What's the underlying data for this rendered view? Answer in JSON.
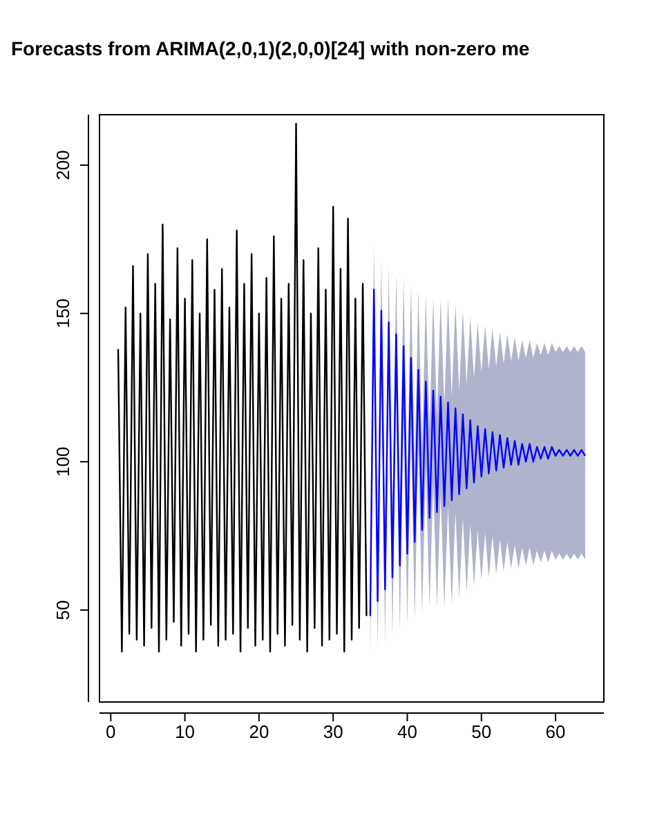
{
  "chart_data": {
    "type": "line",
    "title": "Forecasts from ARIMA(2,0,1)(2,0,0)[24] with non-zero me",
    "xlim": [
      -1.52,
      66.52
    ],
    "xticks": [
      0,
      10,
      20,
      30,
      40,
      50,
      60
    ],
    "ylim": [
      19,
      217
    ],
    "yticks": [
      50,
      100,
      150,
      200
    ],
    "grid": false,
    "marker": "none",
    "line_style": "solid",
    "series": [
      {
        "color": "#000000",
        "x": [
          1,
          1.5,
          2,
          2.5,
          3,
          3.5,
          4,
          4.5,
          5,
          5.5,
          6,
          6.5,
          7,
          7.5,
          8,
          8.5,
          9,
          9.5,
          10,
          10.5,
          11,
          11.5,
          12,
          12.5,
          13,
          13.5,
          14,
          14.5,
          15,
          15.5,
          16,
          16.5,
          17,
          17.5,
          18,
          18.5,
          19,
          19.5,
          20,
          20.5,
          21,
          21.5,
          22,
          22.5,
          23,
          23.5,
          24,
          24.5,
          25,
          25.5,
          26,
          26.5,
          27,
          27.5,
          28,
          28.5,
          29,
          29.5,
          30,
          30.5,
          31,
          31.5,
          32,
          32.5,
          33,
          33.5,
          34,
          34.5
        ],
        "values": [
          138,
          36,
          152,
          42,
          166,
          40,
          150,
          38,
          170,
          44,
          160,
          36,
          180,
          40,
          148,
          46,
          172,
          38,
          155,
          42,
          168,
          36,
          150,
          40,
          175,
          45,
          158,
          38,
          165,
          40,
          152,
          42,
          178,
          36,
          160,
          44,
          170,
          38,
          150,
          40,
          162,
          36,
          176,
          42,
          155,
          38,
          160,
          45,
          214,
          40,
          168,
          36,
          150,
          44,
          172,
          38,
          158,
          40,
          186,
          42,
          165,
          36,
          182,
          40,
          155,
          44,
          160,
          48
        ]
      },
      {
        "color": "#0000ff",
        "x": [
          35,
          35.5,
          36,
          36.5,
          37,
          37.5,
          38,
          38.5,
          39,
          39.5,
          40,
          40.5,
          41,
          41.5,
          42,
          42.5,
          43,
          43.5,
          44,
          44.5,
          45,
          45.5,
          46,
          46.5,
          47,
          47.5,
          48,
          48.5,
          49,
          49.5,
          50,
          50.5,
          51,
          51.5,
          52,
          52.5,
          53,
          53.5,
          54,
          54.5,
          55,
          55.5,
          56,
          56.5,
          57,
          57.5,
          58,
          58.5,
          59,
          59.5,
          60,
          60.5,
          61,
          61.5,
          62,
          62.5,
          63,
          63.5,
          64
        ],
        "values": [
          48,
          158,
          53,
          151,
          57,
          147,
          61,
          143,
          65,
          139,
          69,
          135,
          73,
          131,
          77,
          127,
          81,
          124,
          83,
          122,
          85,
          120,
          87,
          118,
          89,
          116,
          91,
          114,
          93,
          112,
          95,
          111,
          96,
          110,
          97,
          109,
          98,
          108,
          99,
          107,
          99,
          106,
          100,
          106,
          100,
          105,
          101,
          105,
          101,
          105,
          102,
          104,
          102,
          104,
          102,
          104,
          102,
          104,
          102
        ],
        "upper": [
          62,
          173,
          69,
          168,
          75,
          166,
          81,
          164,
          87,
          162,
          93,
          160,
          99,
          158,
          105,
          156,
          111,
          155,
          115,
          155,
          119,
          155,
          122,
          153,
          124,
          151,
          126,
          149,
          128,
          147,
          130,
          146,
          131,
          145,
          132,
          144,
          133,
          143,
          134,
          142,
          134,
          141,
          135,
          141,
          135,
          140,
          136,
          140,
          136,
          140,
          137,
          139,
          137,
          139,
          137,
          139,
          137,
          139,
          137
        ],
        "lower": [
          34,
          143,
          37,
          134,
          39,
          128,
          41,
          122,
          43,
          116,
          45,
          110,
          47,
          104,
          49,
          98,
          51,
          93,
          51,
          89,
          51,
          85,
          52,
          83,
          54,
          81,
          56,
          79,
          58,
          77,
          60,
          76,
          61,
          75,
          62,
          74,
          63,
          73,
          64,
          72,
          64,
          71,
          65,
          71,
          65,
          70,
          66,
          70,
          66,
          70,
          67,
          69,
          67,
          69,
          67,
          69,
          67,
          69,
          67
        ]
      }
    ]
  }
}
